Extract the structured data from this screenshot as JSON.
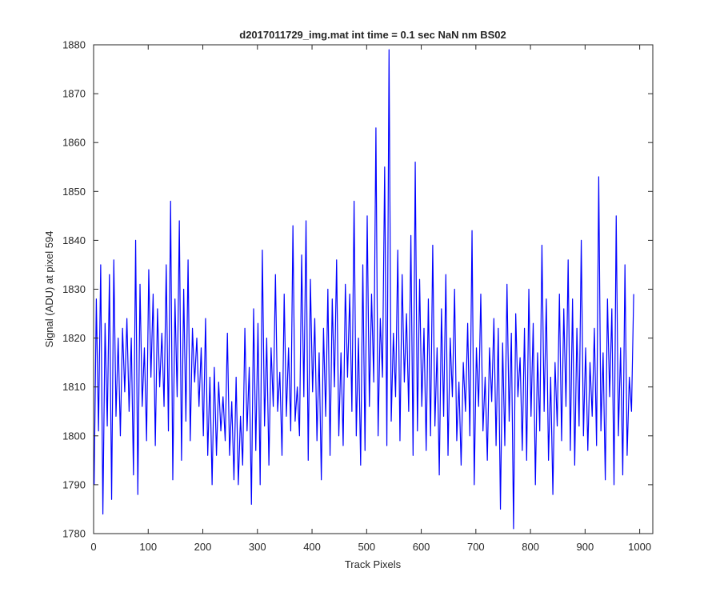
{
  "chart_data": {
    "type": "line",
    "title": "d2017011729_img.mat int time = 0.1 sec  NaN nm BS02",
    "xlabel": "Track Pixels",
    "ylabel": "Signal (ADU) at pixel 594",
    "xlim": [
      0,
      1024
    ],
    "ylim": [
      1780,
      1880
    ],
    "grid": false,
    "x_ticks": [
      "0",
      "100",
      "200",
      "300",
      "400",
      "500",
      "600",
      "700",
      "800",
      "900",
      "1000"
    ],
    "y_ticks": [
      "1780",
      "1790",
      "1800",
      "1810",
      "1820",
      "1830",
      "1840",
      "1850",
      "1860",
      "1870",
      "1880"
    ],
    "series": [
      {
        "color": "#0000ff",
        "sample_step": 4,
        "x_start": 1,
        "values": [
          1790,
          1828,
          1801,
          1835,
          1784,
          1823,
          1802,
          1833,
          1787,
          1836,
          1804,
          1820,
          1800,
          1822,
          1809,
          1824,
          1805,
          1820,
          1792,
          1840,
          1788,
          1831,
          1806,
          1818,
          1799,
          1834,
          1812,
          1829,
          1798,
          1826,
          1810,
          1821,
          1806,
          1835,
          1801,
          1848,
          1791,
          1828,
          1808,
          1844,
          1795,
          1830,
          1803,
          1836,
          1799,
          1822,
          1811,
          1820,
          1806,
          1818,
          1800,
          1824,
          1796,
          1812,
          1790,
          1814,
          1796,
          1811,
          1801,
          1808,
          1799,
          1821,
          1796,
          1807,
          1791,
          1812,
          1790,
          1804,
          1794,
          1822,
          1801,
          1814,
          1786,
          1826,
          1797,
          1823,
          1790,
          1838,
          1802,
          1820,
          1794,
          1818,
          1806,
          1833,
          1805,
          1813,
          1796,
          1829,
          1804,
          1818,
          1801,
          1843,
          1803,
          1810,
          1800,
          1837,
          1808,
          1844,
          1795,
          1832,
          1809,
          1824,
          1799,
          1817,
          1791,
          1822,
          1804,
          1830,
          1796,
          1828,
          1810,
          1836,
          1800,
          1817,
          1798,
          1831,
          1812,
          1829,
          1805,
          1848,
          1800,
          1820,
          1794,
          1835,
          1797,
          1845,
          1806,
          1829,
          1811,
          1863,
          1800,
          1824,
          1812,
          1855,
          1798,
          1879,
          1803,
          1821,
          1808,
          1838,
          1799,
          1833,
          1811,
          1825,
          1805,
          1841,
          1796,
          1856,
          1801,
          1832,
          1806,
          1822,
          1797,
          1828,
          1800,
          1839,
          1802,
          1818,
          1792,
          1826,
          1804,
          1833,
          1796,
          1820,
          1808,
          1830,
          1799,
          1811,
          1794,
          1815,
          1805,
          1823,
          1800,
          1842,
          1790,
          1818,
          1806,
          1829,
          1801,
          1812,
          1795,
          1818,
          1807,
          1824,
          1798,
          1822,
          1785,
          1819,
          1798,
          1831,
          1803,
          1821,
          1781,
          1825,
          1808,
          1816,
          1797,
          1822,
          1795,
          1830,
          1804,
          1823,
          1790,
          1817,
          1801,
          1839,
          1805,
          1828,
          1795,
          1812,
          1788,
          1815,
          1802,
          1829,
          1799,
          1826,
          1806,
          1836,
          1797,
          1828,
          1794,
          1822,
          1802,
          1840,
          1800,
          1818,
          1797,
          1815,
          1804,
          1822,
          1798,
          1853,
          1801,
          1817,
          1791,
          1828,
          1808,
          1826,
          1790,
          1845,
          1800,
          1818,
          1792,
          1835,
          1796,
          1812,
          1805,
          1829
        ]
      }
    ]
  }
}
